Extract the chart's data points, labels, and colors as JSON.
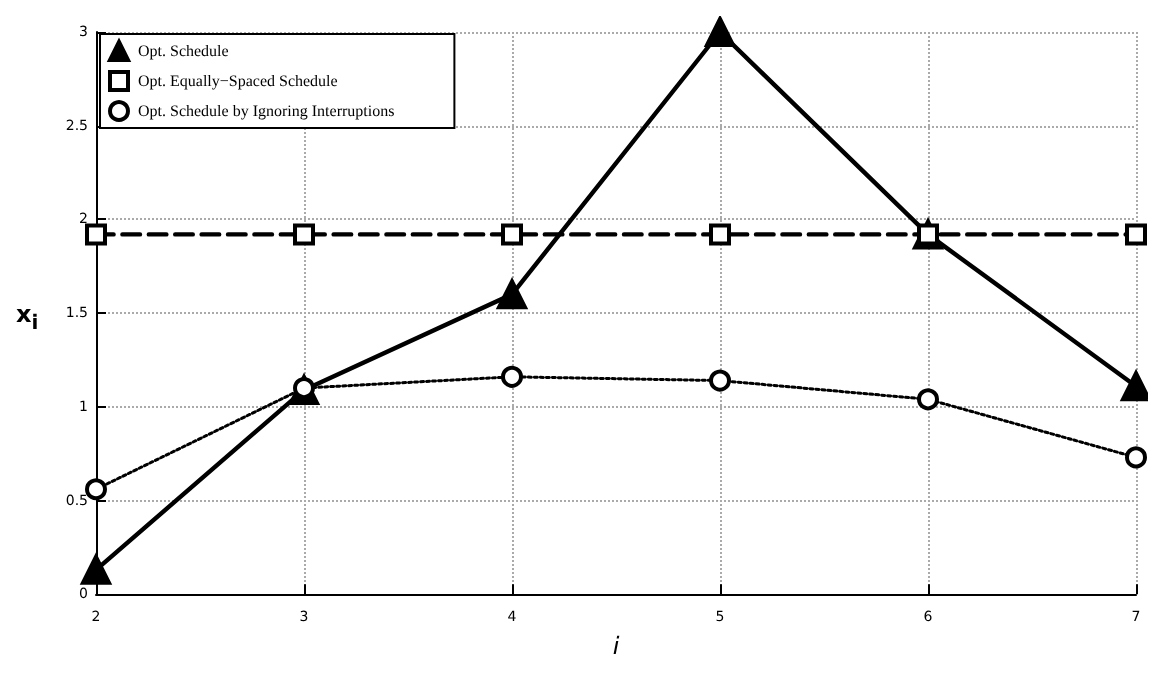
{
  "chart_data": {
    "type": "line",
    "xlabel": "i",
    "ylabel": "x$_{i}$",
    "x": [
      2,
      3,
      4,
      5,
      6,
      7
    ],
    "series": [
      {
        "name": "Opt. Schedule",
        "color": "#000000",
        "marker": "triangle",
        "line_style": "solid",
        "values": [
          0.13,
          1.09,
          1.6,
          3.0,
          1.92,
          1.11
        ]
      },
      {
        "name": "Opt. Equally−Spaced Schedule",
        "color": "#000000",
        "marker": "square",
        "line_style": "dashed",
        "values": [
          1.92,
          1.92,
          1.92,
          1.92,
          1.92,
          1.92
        ]
      },
      {
        "name": "Opt. Schedule by Ignoring Interruptions",
        "color": "#000000",
        "marker": "circle",
        "line_style": "dotted",
        "values": [
          0.56,
          1.1,
          1.16,
          1.14,
          1.04,
          0.73
        ]
      }
    ],
    "xlim": [
      2,
      7
    ],
    "xticks": [
      2,
      3,
      4,
      5,
      6,
      7
    ],
    "ylim": [
      0,
      3
    ],
    "yticks": [
      0,
      0.5,
      1,
      1.5,
      2,
      2.5,
      3
    ],
    "grid": true,
    "legend": "top left"
  }
}
